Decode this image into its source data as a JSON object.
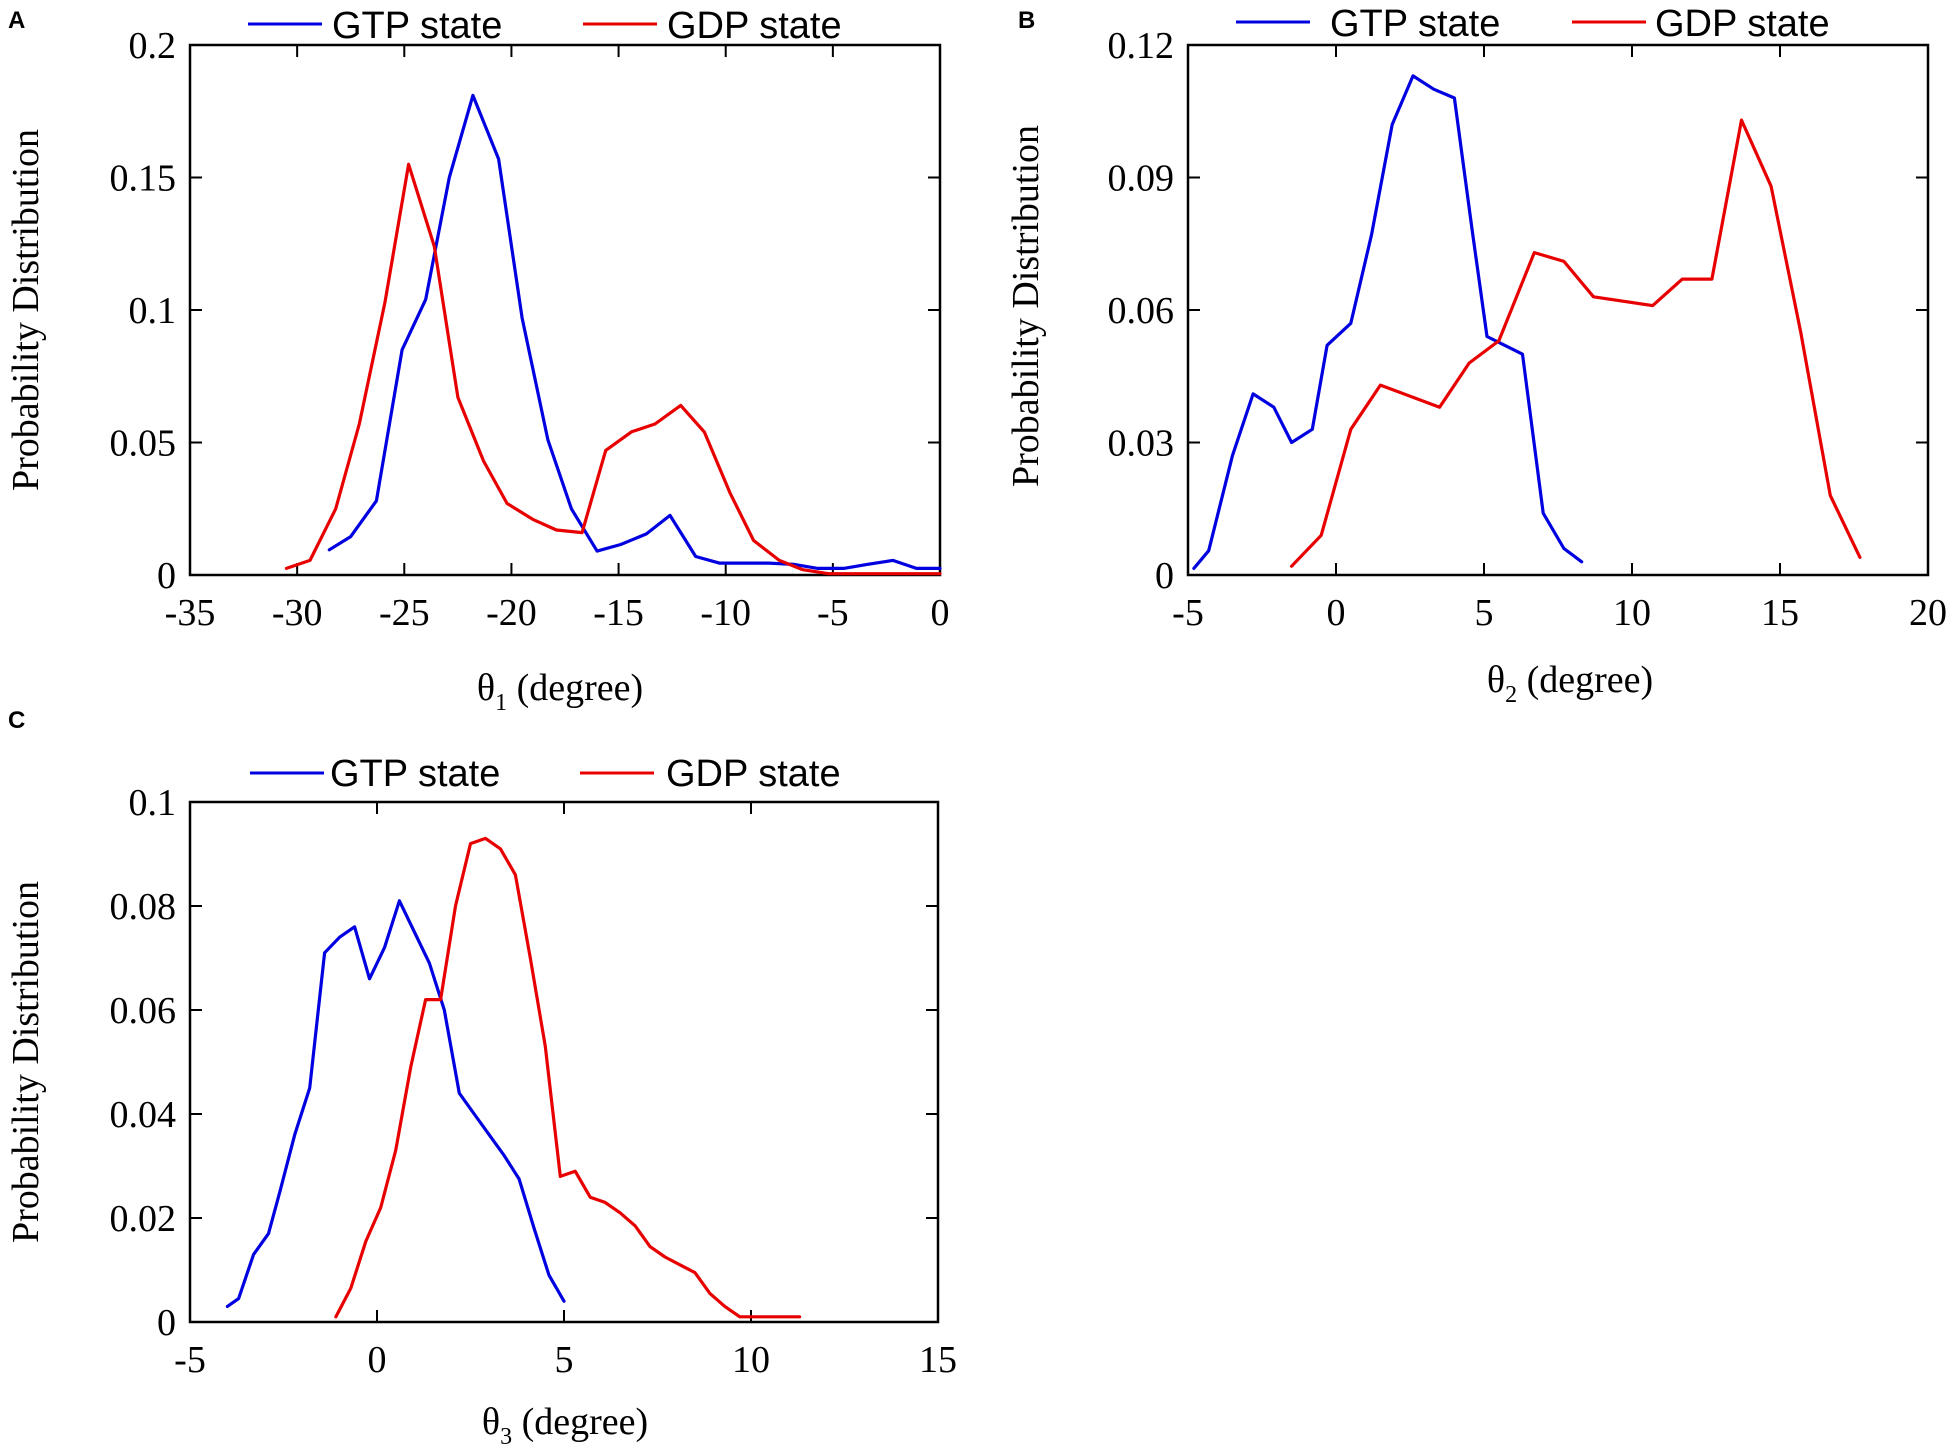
{
  "figure": {
    "panels": [
      "A",
      "B",
      "C"
    ]
  },
  "colors": {
    "gtp": "#0000e0",
    "gdp": "#e80000",
    "axis": "#000000",
    "background": "#ffffff"
  },
  "chart_data": [
    {
      "type": "line",
      "panel": "A",
      "title": "",
      "xlabel": "θ",
      "xlabel_subscript": "1",
      "xlabel_unit": "(degree)",
      "ylabel": "Probability Distribution",
      "xlim": [
        -35,
        0
      ],
      "ylim": [
        0,
        0.2
      ],
      "xticks": [
        -35,
        -30,
        -25,
        -20,
        -15,
        -10,
        -5,
        0
      ],
      "xtick_labels": [
        "-35",
        "-30",
        "-25",
        "-20",
        "-15",
        "-10",
        "-5",
        "0"
      ],
      "yticks": [
        0,
        0.05,
        0.1,
        0.15,
        0.2
      ],
      "ytick_labels": [
        "0",
        "0.05",
        "0.1",
        "0.15",
        "0.2"
      ],
      "legend": [
        "GTP state",
        "GDP state"
      ],
      "legend_position": "top",
      "series": [
        {
          "name": "GTP state",
          "color_key": "gtp",
          "x": [
            -28.5,
            -27.5,
            -26.3,
            -25.1,
            -24.0,
            -22.9,
            -21.8,
            -20.6,
            -19.5,
            -18.3,
            -17.2,
            -16.0,
            -14.9,
            -13.7,
            -12.6,
            -11.4,
            -10.3,
            -9.1,
            -8.0,
            -6.8,
            -5.7,
            -4.5,
            -3.4,
            -2.2,
            -1.1,
            0.0
          ],
          "values": [
            0.0095,
            0.0145,
            0.028,
            0.085,
            0.104,
            0.15,
            0.181,
            0.157,
            0.097,
            0.051,
            0.025,
            0.009,
            0.0115,
            0.0155,
            0.0225,
            0.007,
            0.0045,
            0.0045,
            0.0045,
            0.004,
            0.0025,
            0.0025,
            0.004,
            0.0055,
            0.0025,
            0.0025
          ]
        },
        {
          "name": "GDP state",
          "color_key": "gdp",
          "x": [
            -30.5,
            -29.4,
            -28.2,
            -27.1,
            -25.9,
            -24.8,
            -23.6,
            -22.5,
            -21.3,
            -20.2,
            -19.0,
            -17.9,
            -16.7,
            -15.6,
            -14.4,
            -13.3,
            -12.1,
            -11.0,
            -9.8,
            -8.7,
            -7.5,
            -6.4,
            -5.2,
            -4.1,
            -2.9,
            -1.8,
            -0.6,
            0.0
          ],
          "values": [
            0.0025,
            0.0055,
            0.025,
            0.057,
            0.103,
            0.155,
            0.124,
            0.067,
            0.043,
            0.027,
            0.021,
            0.017,
            0.016,
            0.047,
            0.054,
            0.057,
            0.064,
            0.054,
            0.031,
            0.013,
            0.0055,
            0.002,
            0.0005,
            0.0005,
            0.0005,
            0.0005,
            0.0005,
            0.0005
          ]
        }
      ]
    },
    {
      "type": "line",
      "panel": "B",
      "title": "",
      "xlabel": "θ",
      "xlabel_subscript": "2",
      "xlabel_unit": "(degree)",
      "ylabel": "Probability Distribution",
      "xlim": [
        -5,
        20
      ],
      "ylim": [
        0,
        0.12
      ],
      "xticks": [
        -5,
        0,
        5,
        10,
        15,
        20
      ],
      "xtick_labels": [
        "-5",
        "0",
        "5",
        "10",
        "15",
        "20"
      ],
      "yticks": [
        0,
        0.03,
        0.06,
        0.09,
        0.12
      ],
      "ytick_labels": [
        "0",
        "0.03",
        "0.06",
        "0.09",
        "0.12"
      ],
      "legend": [
        "GTP state",
        "GDP state"
      ],
      "legend_position": "top",
      "series": [
        {
          "name": "GTP state",
          "color_key": "gtp",
          "x": [
            -4.8,
            -4.3,
            -3.5,
            -2.8,
            -2.1,
            -1.5,
            -0.8,
            -0.3,
            0.5,
            1.2,
            1.9,
            2.6,
            3.3,
            4.0,
            4.6,
            5.1,
            5.7,
            6.3,
            7.0,
            7.7,
            8.3
          ],
          "values": [
            0.0015,
            0.0055,
            0.027,
            0.041,
            0.038,
            0.03,
            0.033,
            0.052,
            0.057,
            0.077,
            0.102,
            0.113,
            0.11,
            0.108,
            0.078,
            0.054,
            0.052,
            0.05,
            0.014,
            0.006,
            0.003
          ]
        },
        {
          "name": "GDP state",
          "color_key": "gdp",
          "x": [
            -1.5,
            -0.5,
            0.5,
            1.5,
            3.5,
            4.5,
            5.5,
            6.7,
            7.7,
            8.7,
            10.7,
            11.7,
            12.7,
            13.7,
            14.7,
            15.7,
            16.7,
            17.7
          ],
          "values": [
            0.002,
            0.009,
            0.033,
            0.043,
            0.038,
            0.048,
            0.053,
            0.073,
            0.071,
            0.063,
            0.061,
            0.067,
            0.067,
            0.103,
            0.088,
            0.055,
            0.018,
            0.004
          ]
        }
      ]
    },
    {
      "type": "line",
      "panel": "C",
      "title": "",
      "xlabel": "θ",
      "xlabel_subscript": "3",
      "xlabel_unit": "(degree)",
      "ylabel": "Probability Distribution",
      "xlim": [
        -5,
        15
      ],
      "ylim": [
        0,
        0.1
      ],
      "xticks": [
        -5,
        0,
        5,
        10,
        15
      ],
      "xtick_labels": [
        "-5",
        "0",
        "5",
        "10",
        "15"
      ],
      "yticks": [
        0,
        0.02,
        0.04,
        0.06,
        0.08,
        0.1
      ],
      "ytick_labels": [
        "0",
        "0.02",
        "0.04",
        "0.06",
        "0.08",
        "0.1"
      ],
      "legend": [
        "GTP state",
        "GDP state"
      ],
      "legend_position": "top",
      "series": [
        {
          "name": "GTP state",
          "color_key": "gtp",
          "x": [
            -4.0,
            -3.7,
            -3.3,
            -2.9,
            -2.6,
            -2.2,
            -1.8,
            -1.4,
            -1.0,
            -0.6,
            -0.2,
            0.2,
            0.6,
            1.0,
            1.4,
            1.8,
            2.2,
            2.6,
            3.0,
            3.4,
            3.8,
            4.2,
            4.6,
            5.0
          ],
          "values": [
            0.003,
            0.0045,
            0.013,
            0.017,
            0.025,
            0.036,
            0.045,
            0.071,
            0.074,
            0.076,
            0.066,
            0.072,
            0.081,
            0.075,
            0.069,
            0.06,
            0.044,
            0.04,
            0.036,
            0.032,
            0.0275,
            0.018,
            0.009,
            0.004
          ]
        },
        {
          "name": "GDP state",
          "color_key": "gdp",
          "x": [
            -1.1,
            -0.7,
            -0.3,
            0.1,
            0.5,
            0.9,
            1.3,
            1.7,
            2.1,
            2.5,
            2.9,
            3.3,
            3.7,
            4.1,
            4.5,
            4.9,
            5.3,
            5.7,
            6.1,
            6.5,
            6.9,
            7.3,
            7.7,
            8.1,
            8.5,
            8.9,
            9.3,
            9.7,
            10.1,
            10.5,
            10.9,
            11.3
          ],
          "values": [
            0.001,
            0.0065,
            0.0155,
            0.022,
            0.033,
            0.049,
            0.062,
            0.062,
            0.08,
            0.092,
            0.093,
            0.091,
            0.086,
            0.07,
            0.053,
            0.028,
            0.029,
            0.024,
            0.023,
            0.021,
            0.0185,
            0.0145,
            0.0125,
            0.011,
            0.0095,
            0.0055,
            0.003,
            0.001,
            0.001,
            0.001,
            0.001,
            0.001
          ]
        }
      ]
    }
  ]
}
